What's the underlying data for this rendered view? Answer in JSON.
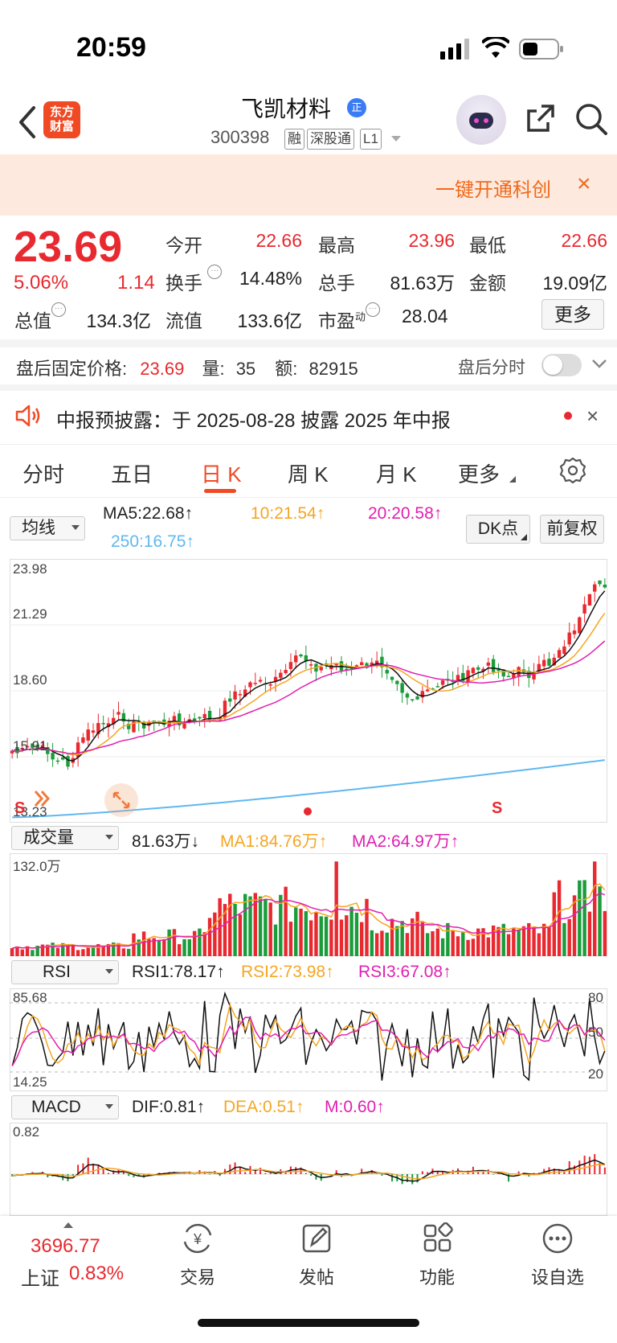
{
  "status_bar": {
    "time": "20:59"
  },
  "header": {
    "logo": "东方财富",
    "name": "飞凯材料",
    "verified_badge": "正",
    "code": "300398",
    "tags": [
      "融",
      "深股通",
      "L1"
    ]
  },
  "banner": {
    "text": "一键开通科创",
    "close": "×"
  },
  "quote": {
    "price": "23.69",
    "pct": "5.06%",
    "change": "1.14",
    "fields": {
      "open_label": "今开",
      "open": "22.66",
      "high_label": "最高",
      "high": "23.96",
      "low_label": "最低",
      "low": "22.66",
      "turnover_label": "换手",
      "turnover": "14.48%",
      "volume_label": "总手",
      "volume": "81.63万",
      "amount_label": "金额",
      "amount": "19.09亿",
      "mktcap_label": "总值",
      "mktcap": "134.3亿",
      "float_label": "流值",
      "float": "133.6亿",
      "pe_label": "市盈",
      "pe_sup": "动",
      "pe": "28.04"
    },
    "more_label": "更多"
  },
  "after_hours": {
    "label": "盘后固定价格:",
    "price": "23.69",
    "vol_label": "量:",
    "vol": "35",
    "amt_label": "额:",
    "amt": "82915",
    "toggle_label": "盘后分时"
  },
  "notice": {
    "text": "中报预披露：于 2025-08-28 披露 2025 年中报"
  },
  "tabs": [
    "分时",
    "五日",
    "日 K",
    "周 K",
    "月 K",
    "更多"
  ],
  "active_tab": 2,
  "kline": {
    "ma_select": "均线",
    "ma5": "MA5:22.68↑",
    "ma10": "10:21.54↑",
    "ma20": "20:20.58↑",
    "ma250": "250:16.75↑",
    "dk_button": "DK点",
    "adjust_button": "前复权",
    "y_labels": [
      "23.98",
      "21.29",
      "18.60",
      "15.91",
      "13.23"
    ],
    "markers": {
      "s_left": "S",
      "s_right": "S"
    }
  },
  "volume": {
    "select": "成交量",
    "value": "81.63万↓",
    "ma1": "MA1:84.76万↑",
    "ma2": "MA2:64.97万↑",
    "y_label": "132.0万"
  },
  "rsi": {
    "select": "RSI",
    "rsi1": "RSI1:78.17↑",
    "rsi2": "RSI2:73.98↑",
    "rsi3": "RSI3:67.08↑",
    "y_top": "85.68",
    "y_bottom": "14.25",
    "levels": [
      "80",
      "50",
      "20"
    ]
  },
  "macd": {
    "select": "MACD",
    "dif": "DIF:0.81↑",
    "dea": "DEA:0.51↑",
    "m": "M:0.60↑",
    "y_top": "0.82"
  },
  "bottom_nav": {
    "index_value": "3696.77",
    "index_name": "上证",
    "index_pct": "0.83%",
    "items": [
      "交易",
      "发帖",
      "功能",
      "设自选"
    ]
  },
  "colors": {
    "up": "#e8292f",
    "down": "#1a9c3b",
    "ma5": "#111111",
    "ma10": "#f5a623",
    "ma20": "#e020b0",
    "ma250": "#5fb8f0",
    "brand": "#ef4a24"
  }
}
